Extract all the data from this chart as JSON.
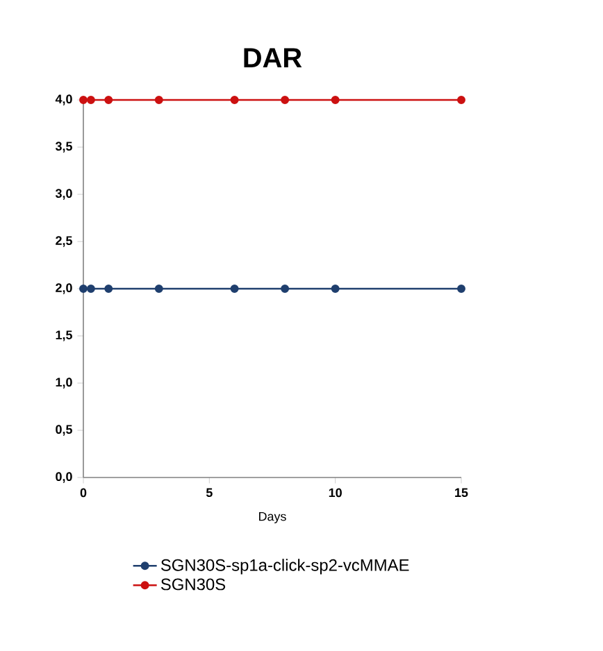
{
  "chart_data": {
    "type": "line",
    "title": "DAR",
    "xlabel": "Days",
    "x": [
      0,
      0.3,
      1,
      3,
      6,
      8,
      10,
      15
    ],
    "series": [
      {
        "name": "SGN30S-sp1a-click-sp2-vcMMAE",
        "color": "#1f3f6e",
        "values": [
          2,
          2,
          2,
          2,
          2,
          2,
          2,
          2
        ]
      },
      {
        "name": "SGN30S",
        "color": "#cc1111",
        "values": [
          4,
          4,
          4,
          4,
          4,
          4,
          4,
          4
        ]
      }
    ],
    "xlim": [
      0,
      15
    ],
    "xticks": [
      0,
      5,
      10,
      15
    ],
    "ylim": [
      0,
      4
    ],
    "yticks": [
      {
        "value": 0,
        "label": "0,0"
      },
      {
        "value": 0.5,
        "label": "0,5"
      },
      {
        "value": 1,
        "label": "1,0"
      },
      {
        "value": 1.5,
        "label": "1,5"
      },
      {
        "value": 2,
        "label": "2,0"
      },
      {
        "value": 2.5,
        "label": "2,5"
      },
      {
        "value": 3,
        "label": "3,0"
      },
      {
        "value": 3.5,
        "label": "3,5"
      },
      {
        "value": 4,
        "label": "4,0"
      }
    ],
    "marker": "circle",
    "legend": "bottom",
    "grid": false
  }
}
